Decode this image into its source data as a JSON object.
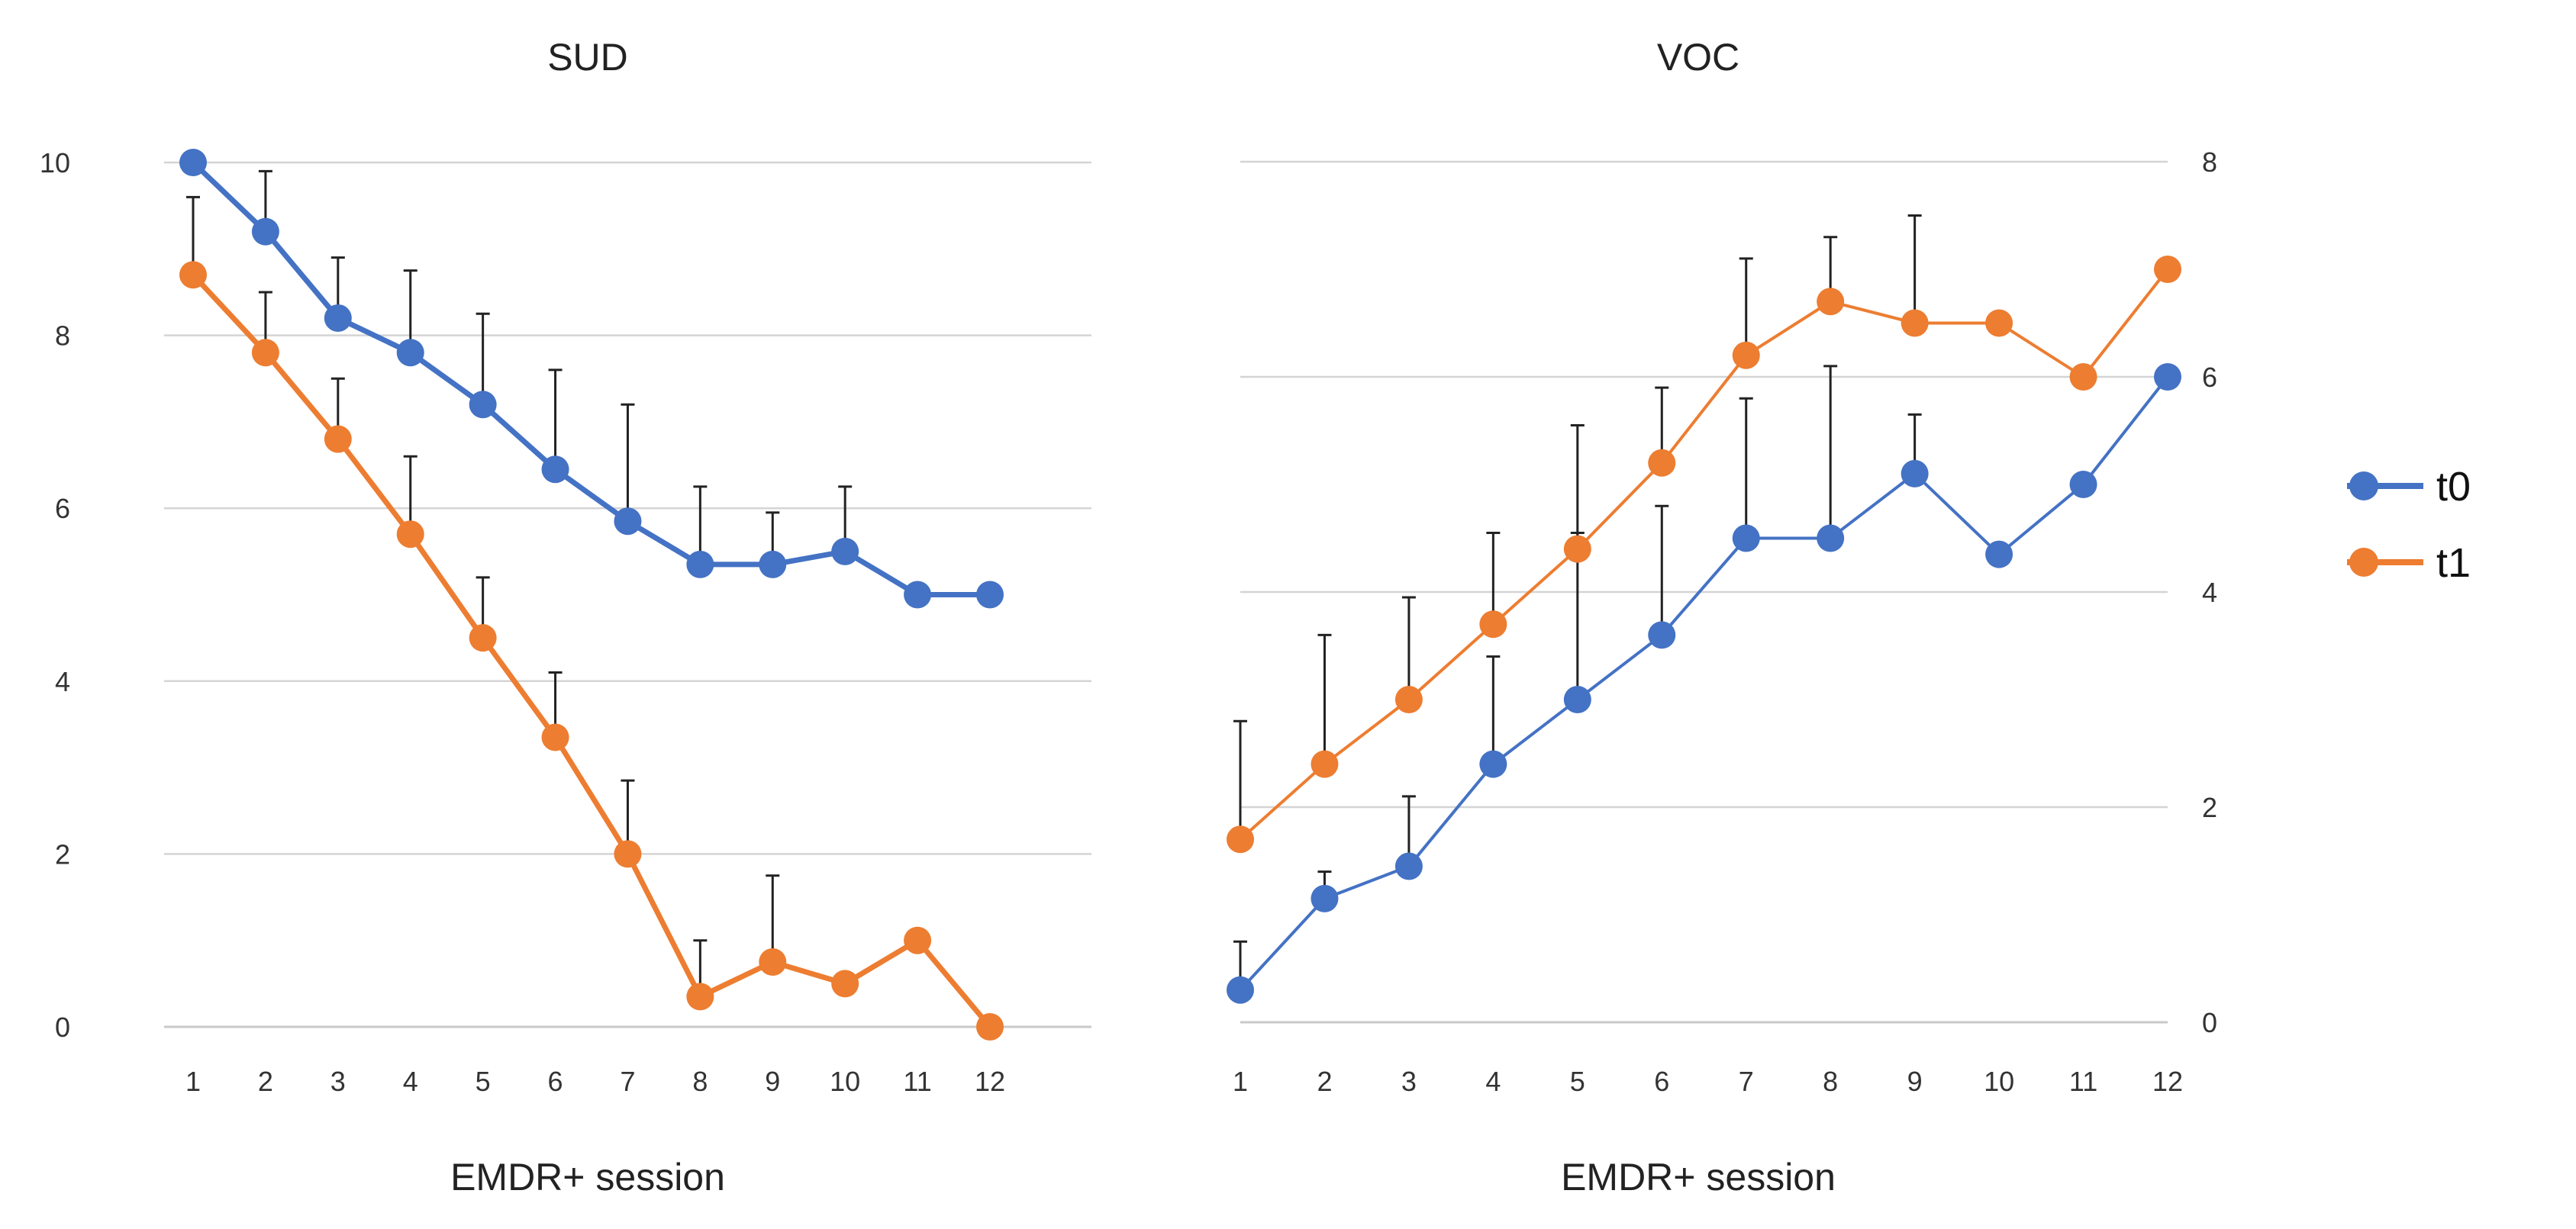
{
  "legend": [
    {
      "name": "t0",
      "color": "#4472c4"
    },
    {
      "name": "t1",
      "color": "#ed7d31"
    }
  ],
  "chart_data": [
    {
      "type": "line",
      "title": "SUD",
      "xlabel": "EMDR+ session",
      "ylabel": "",
      "categories": [
        "1",
        "2",
        "3",
        "4",
        "5",
        "6",
        "7",
        "8",
        "9",
        "10",
        "11",
        "12"
      ],
      "ylim": [
        0,
        10
      ],
      "yticks": [
        "0",
        "2",
        "4",
        "6",
        "8",
        "10"
      ],
      "y_axis_side": "left",
      "grid": true,
      "series": [
        {
          "name": "t0",
          "color": "#4472c4",
          "values": [
            10,
            9.2,
            8.2,
            7.8,
            7.2,
            6.45,
            5.85,
            5.35,
            5.35,
            5.5,
            5.0,
            5.0
          ],
          "error_upper": [
            10,
            9.9,
            8.9,
            8.75,
            8.25,
            7.6,
            7.2,
            6.25,
            5.95,
            6.25,
            null,
            null
          ]
        },
        {
          "name": "t1",
          "color": "#ed7d31",
          "values": [
            8.7,
            7.8,
            6.8,
            5.7,
            4.5,
            3.35,
            2.0,
            0.35,
            0.75,
            0.5,
            1.0,
            0
          ],
          "error_upper": [
            9.6,
            8.5,
            7.5,
            6.6,
            5.2,
            4.1,
            2.85,
            1.0,
            1.75,
            null,
            null,
            null
          ]
        }
      ]
    },
    {
      "type": "line",
      "title": "VOC",
      "xlabel": "EMDR+ session",
      "ylabel": "",
      "categories": [
        "1",
        "2",
        "3",
        "4",
        "5",
        "6",
        "7",
        "8",
        "9",
        "10",
        "11",
        "12"
      ],
      "ylim": [
        0,
        8
      ],
      "yticks": [
        "0",
        "2",
        "4",
        "6",
        "8"
      ],
      "y_axis_side": "right",
      "grid": true,
      "series": [
        {
          "name": "t0",
          "color": "#4472c4",
          "values": [
            0.3,
            1.15,
            1.45,
            2.4,
            3.0,
            3.6,
            4.5,
            4.5,
            5.1,
            4.35,
            5.0,
            6.0
          ],
          "error_upper": [
            0.75,
            1.4,
            2.1,
            3.4,
            4.55,
            4.8,
            5.8,
            6.1,
            5.65,
            null,
            null,
            null
          ]
        },
        {
          "name": "t1",
          "color": "#ed7d31",
          "values": [
            1.7,
            2.4,
            3.0,
            3.7,
            4.4,
            5.2,
            6.2,
            6.7,
            6.5,
            6.5,
            6.0,
            7.0
          ],
          "error_upper": [
            2.8,
            3.6,
            3.95,
            4.55,
            5.55,
            5.9,
            7.1,
            7.3,
            7.5,
            null,
            null,
            null
          ]
        }
      ]
    }
  ]
}
